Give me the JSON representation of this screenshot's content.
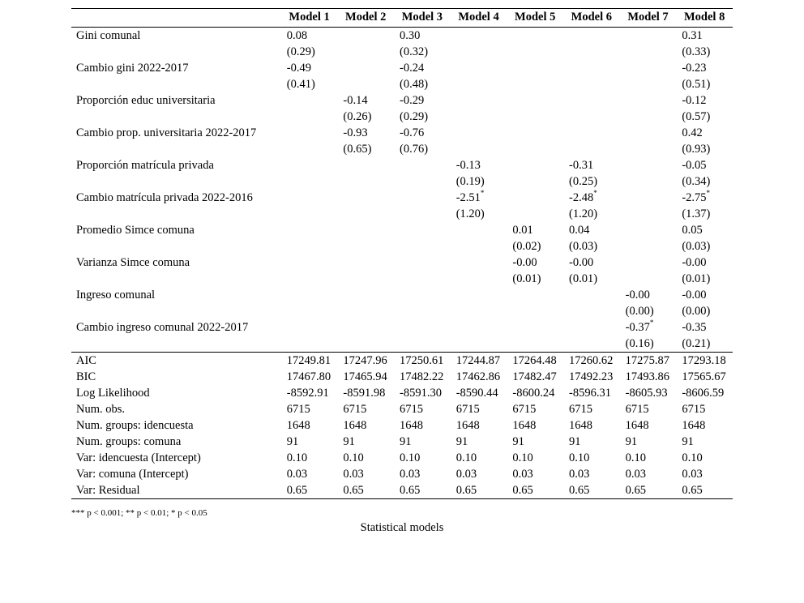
{
  "headers": [
    "",
    "Model 1",
    "Model 2",
    "Model 3",
    "Model 4",
    "Model 5",
    "Model 6",
    "Model 7",
    "Model 8"
  ],
  "coef_rows": [
    {
      "label": "Gini comunal",
      "est": [
        "0.08",
        "",
        "0.30",
        "",
        "",
        "",
        "",
        "0.31"
      ],
      "sig": [
        "",
        "",
        "",
        "",
        "",
        "",
        "",
        ""
      ],
      "se": [
        "(0.29)",
        "",
        "(0.32)",
        "",
        "",
        "",
        "",
        "(0.33)"
      ]
    },
    {
      "label": "Cambio gini 2022-2017",
      "est": [
        "-0.49",
        "",
        "-0.24",
        "",
        "",
        "",
        "",
        "-0.23"
      ],
      "sig": [
        "",
        "",
        "",
        "",
        "",
        "",
        "",
        ""
      ],
      "se": [
        "(0.41)",
        "",
        "(0.48)",
        "",
        "",
        "",
        "",
        "(0.51)"
      ]
    },
    {
      "label": "Proporción educ universitaria",
      "est": [
        "",
        "-0.14",
        "-0.29",
        "",
        "",
        "",
        "",
        "-0.12"
      ],
      "sig": [
        "",
        "",
        "",
        "",
        "",
        "",
        "",
        ""
      ],
      "se": [
        "",
        "(0.26)",
        "(0.29)",
        "",
        "",
        "",
        "",
        "(0.57)"
      ]
    },
    {
      "label": "Cambio prop. universitaria 2022-2017",
      "est": [
        "",
        "-0.93",
        "-0.76",
        "",
        "",
        "",
        "",
        "0.42"
      ],
      "sig": [
        "",
        "",
        "",
        "",
        "",
        "",
        "",
        ""
      ],
      "se": [
        "",
        "(0.65)",
        "(0.76)",
        "",
        "",
        "",
        "",
        "(0.93)"
      ]
    },
    {
      "label": "Proporción matrícula privada",
      "est": [
        "",
        "",
        "",
        "-0.13",
        "",
        "-0.31",
        "",
        "-0.05"
      ],
      "sig": [
        "",
        "",
        "",
        "",
        "",
        "",
        "",
        ""
      ],
      "se": [
        "",
        "",
        "",
        "(0.19)",
        "",
        "(0.25)",
        "",
        "(0.34)"
      ]
    },
    {
      "label": "Cambio matrícula privada 2022-2016",
      "est": [
        "",
        "",
        "",
        "-2.51",
        "",
        "-2.48",
        "",
        "-2.75"
      ],
      "sig": [
        "",
        "",
        "",
        "*",
        "",
        "*",
        "",
        "*"
      ],
      "se": [
        "",
        "",
        "",
        "(1.20)",
        "",
        "(1.20)",
        "",
        "(1.37)"
      ]
    },
    {
      "label": "Promedio Simce comuna",
      "est": [
        "",
        "",
        "",
        "",
        "0.01",
        "0.04",
        "",
        "0.05"
      ],
      "sig": [
        "",
        "",
        "",
        "",
        "",
        "",
        "",
        ""
      ],
      "se": [
        "",
        "",
        "",
        "",
        "(0.02)",
        "(0.03)",
        "",
        "(0.03)"
      ]
    },
    {
      "label": "Varianza Simce comuna",
      "est": [
        "",
        "",
        "",
        "",
        "-0.00",
        "-0.00",
        "",
        "-0.00"
      ],
      "sig": [
        "",
        "",
        "",
        "",
        "",
        "",
        "",
        ""
      ],
      "se": [
        "",
        "",
        "",
        "",
        "(0.01)",
        "(0.01)",
        "",
        "(0.01)"
      ]
    },
    {
      "label": "Ingreso comunal",
      "est": [
        "",
        "",
        "",
        "",
        "",
        "",
        "-0.00",
        "-0.00"
      ],
      "sig": [
        "",
        "",
        "",
        "",
        "",
        "",
        "",
        ""
      ],
      "se": [
        "",
        "",
        "",
        "",
        "",
        "",
        "(0.00)",
        "(0.00)"
      ]
    },
    {
      "label": "Cambio ingreso comunal 2022-2017",
      "est": [
        "",
        "",
        "",
        "",
        "",
        "",
        "-0.37",
        "-0.35"
      ],
      "sig": [
        "",
        "",
        "",
        "",
        "",
        "",
        "*",
        ""
      ],
      "se": [
        "",
        "",
        "",
        "",
        "",
        "",
        "(0.16)",
        "(0.21)"
      ]
    }
  ],
  "gof_rows": [
    {
      "label": "AIC",
      "vals": [
        "17249.81",
        "17247.96",
        "17250.61",
        "17244.87",
        "17264.48",
        "17260.62",
        "17275.87",
        "17293.18"
      ]
    },
    {
      "label": "BIC",
      "vals": [
        "17467.80",
        "17465.94",
        "17482.22",
        "17462.86",
        "17482.47",
        "17492.23",
        "17493.86",
        "17565.67"
      ]
    },
    {
      "label": "Log Likelihood",
      "vals": [
        "-8592.91",
        "-8591.98",
        "-8591.30",
        "-8590.44",
        "-8600.24",
        "-8596.31",
        "-8605.93",
        "-8606.59"
      ]
    },
    {
      "label": "Num. obs.",
      "vals": [
        "6715",
        "6715",
        "6715",
        "6715",
        "6715",
        "6715",
        "6715",
        "6715"
      ]
    },
    {
      "label": "Num. groups: idencuesta",
      "vals": [
        "1648",
        "1648",
        "1648",
        "1648",
        "1648",
        "1648",
        "1648",
        "1648"
      ]
    },
    {
      "label": "Num. groups: comuna",
      "vals": [
        "91",
        "91",
        "91",
        "91",
        "91",
        "91",
        "91",
        "91"
      ]
    },
    {
      "label": "Var: idencuesta (Intercept)",
      "vals": [
        "0.10",
        "0.10",
        "0.10",
        "0.10",
        "0.10",
        "0.10",
        "0.10",
        "0.10"
      ]
    },
    {
      "label": "Var: comuna (Intercept)",
      "vals": [
        "0.03",
        "0.03",
        "0.03",
        "0.03",
        "0.03",
        "0.03",
        "0.03",
        "0.03"
      ]
    },
    {
      "label": "Var: Residual",
      "vals": [
        "0.65",
        "0.65",
        "0.65",
        "0.65",
        "0.65",
        "0.65",
        "0.65",
        "0.65"
      ]
    }
  ],
  "footnote": "*** p < 0.001; ** p < 0.01; * p < 0.05",
  "caption": "Statistical models"
}
